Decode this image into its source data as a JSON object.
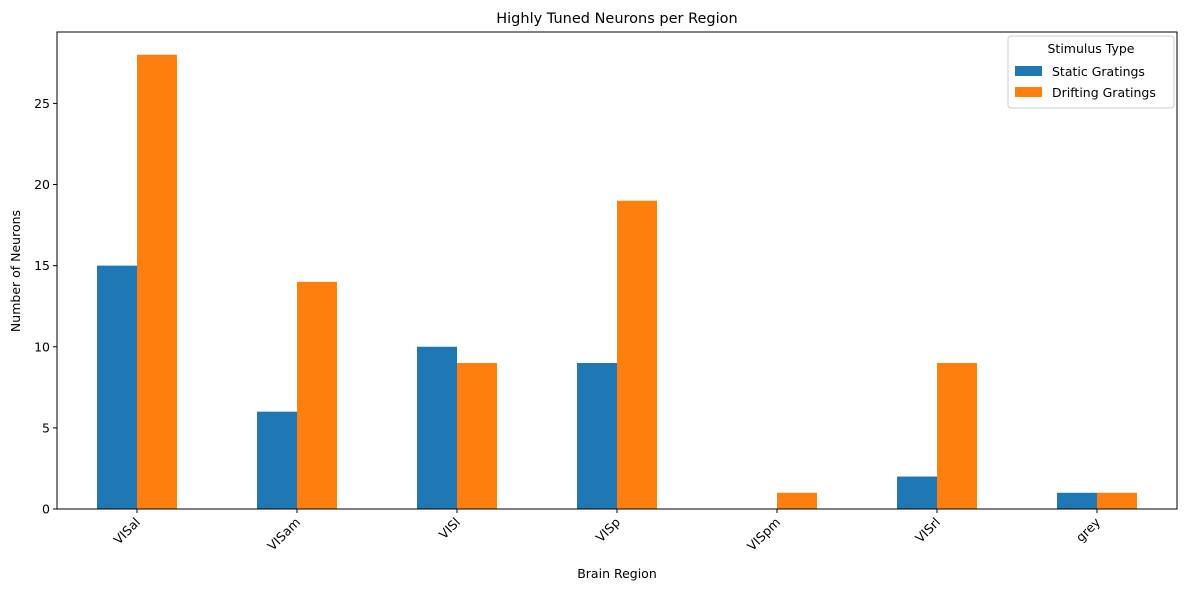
{
  "chart_data": {
    "type": "bar",
    "title": "Highly Tuned Neurons per Region",
    "xlabel": "Brain Region",
    "ylabel": "Number of Neurons",
    "categories": [
      "VISal",
      "VISam",
      "VISl",
      "VISp",
      "VISpm",
      "VISrl",
      "grey"
    ],
    "series": [
      {
        "name": "Static Gratings",
        "values": [
          15,
          6,
          10,
          9,
          0,
          2,
          1
        ],
        "color": "#1f77b4"
      },
      {
        "name": "Drifting Gratings",
        "values": [
          28,
          14,
          9,
          19,
          1,
          9,
          1
        ],
        "color": "#ff7f0e"
      }
    ],
    "ylim": [
      0,
      29.4
    ],
    "yticks": [
      0,
      5,
      10,
      15,
      20,
      25
    ],
    "legend": {
      "title": "Stimulus Type",
      "position": "top-right"
    },
    "grid": false
  }
}
